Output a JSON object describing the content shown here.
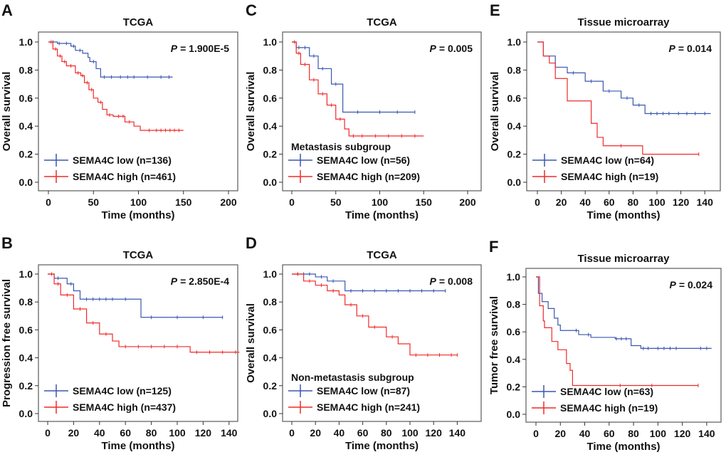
{
  "colors": {
    "low": "#3a57b0",
    "high": "#f02a2a",
    "axis": "#222222"
  },
  "chart_data": [
    {
      "type": "line",
      "letter": "A",
      "title": "TCGA",
      "ylabel": "Overall survival",
      "xlabel": "Time (months)",
      "p_label": "P",
      "p_value": "= 1.900E-5",
      "subgroup": "",
      "xlim": [
        0,
        200
      ],
      "xticks": [
        "0",
        "50",
        "100",
        "150",
        "200"
      ],
      "ylim": [
        0,
        1
      ],
      "yticks": [
        "0.0",
        "0.2",
        "0.4",
        "0.6",
        "0.8",
        "1.0"
      ],
      "legend": [
        "SEMA4C low (n=136)",
        "SEMA4C high (n=461)"
      ],
      "legend_position": "bottom-left",
      "series": [
        {
          "name": "SEMA4C low",
          "steps": [
            [
              0,
              1
            ],
            [
              10,
              0.99
            ],
            [
              25,
              0.97
            ],
            [
              30,
              0.94
            ],
            [
              38,
              0.92
            ],
            [
              44,
              0.89
            ],
            [
              46,
              0.86
            ],
            [
              53,
              0.81
            ],
            [
              58,
              0.75
            ]
          ],
          "end": 138,
          "censor": [
            5,
            12,
            20,
            28,
            35,
            50,
            62,
            70,
            80,
            88,
            95,
            110,
            125,
            134
          ]
        },
        {
          "name": "SEMA4C high",
          "steps": [
            [
              0,
              1
            ],
            [
              5,
              0.95
            ],
            [
              10,
              0.9
            ],
            [
              15,
              0.86
            ],
            [
              20,
              0.83
            ],
            [
              30,
              0.78
            ],
            [
              36,
              0.76
            ],
            [
              40,
              0.71
            ],
            [
              45,
              0.66
            ],
            [
              50,
              0.6
            ],
            [
              55,
              0.57
            ],
            [
              60,
              0.52
            ],
            [
              65,
              0.48
            ],
            [
              72,
              0.47
            ],
            [
              85,
              0.43
            ],
            [
              95,
              0.4
            ],
            [
              102,
              0.37
            ]
          ],
          "end": 150,
          "censor": [
            3,
            8,
            13,
            18,
            25,
            33,
            38,
            43,
            48,
            58,
            68,
            78,
            83,
            90,
            112,
            120,
            125,
            130,
            135,
            140,
            145
          ]
        }
      ]
    },
    {
      "type": "line",
      "letter": "C",
      "title": "TCGA",
      "ylabel": "Overall survival",
      "xlabel": "Time (months)",
      "p_label": "P",
      "p_value": "= 0.005",
      "subgroup": "Metastasis subgroup",
      "xlim": [
        0,
        200
      ],
      "xticks": [
        "0",
        "50",
        "100",
        "150",
        "200"
      ],
      "ylim": [
        0,
        1
      ],
      "yticks": [
        "0.0",
        "0.2",
        "0.4",
        "0.6",
        "0.8",
        "1.0"
      ],
      "legend": [
        "SEMA4C low (n=56)",
        "SEMA4C high (n=209)"
      ],
      "legend_position": "bottom-left",
      "series": [
        {
          "name": "SEMA4C low",
          "steps": [
            [
              0,
              1
            ],
            [
              5,
              0.96
            ],
            [
              20,
              0.9
            ],
            [
              30,
              0.81
            ],
            [
              45,
              0.7
            ],
            [
              58,
              0.5
            ]
          ],
          "end": 140,
          "censor": [
            8,
            15,
            25,
            35,
            50,
            75,
            100,
            120,
            140
          ]
        },
        {
          "name": "SEMA4C high",
          "steps": [
            [
              0,
              1
            ],
            [
              5,
              0.92
            ],
            [
              10,
              0.84
            ],
            [
              20,
              0.73
            ],
            [
              30,
              0.63
            ],
            [
              40,
              0.55
            ],
            [
              50,
              0.45
            ],
            [
              60,
              0.38
            ],
            [
              65,
              0.33
            ]
          ],
          "end": 150,
          "censor": [
            3,
            8,
            15,
            25,
            35,
            45,
            55,
            70,
            80,
            95,
            110,
            125,
            140
          ]
        }
      ]
    },
    {
      "type": "line",
      "letter": "E",
      "title": "Tissue microarray",
      "ylabel": "Overall survival",
      "xlabel": "Time (months)",
      "p_label": "P",
      "p_value": "= 0.014",
      "subgroup": "",
      "xlim": [
        0,
        150
      ],
      "xticks": [
        "0",
        "20",
        "40",
        "60",
        "80",
        "100",
        "120",
        "140"
      ],
      "ylim": [
        0,
        1
      ],
      "yticks": [
        "0.0",
        "0.2",
        "0.4",
        "0.6",
        "0.8",
        "1.0"
      ],
      "legend": [
        "SEMA4C low    (n=64)",
        "SEMA4C high  (n=19)"
      ],
      "legend_position": "bottom-left",
      "series": [
        {
          "name": "SEMA4C low",
          "steps": [
            [
              0,
              1
            ],
            [
              5,
              0.9
            ],
            [
              15,
              0.82
            ],
            [
              25,
              0.78
            ],
            [
              40,
              0.72
            ],
            [
              55,
              0.65
            ],
            [
              70,
              0.6
            ],
            [
              80,
              0.55
            ],
            [
              90,
              0.49
            ]
          ],
          "end": 145,
          "censor": [
            30,
            45,
            60,
            75,
            85,
            95,
            100,
            105,
            110,
            118,
            125,
            132,
            140
          ]
        },
        {
          "name": "SEMA4C high",
          "steps": [
            [
              0,
              1
            ],
            [
              5,
              0.9
            ],
            [
              10,
              0.85
            ],
            [
              15,
              0.74
            ],
            [
              25,
              0.58
            ],
            [
              45,
              0.42
            ],
            [
              50,
              0.32
            ],
            [
              55,
              0.26
            ],
            [
              88,
              0.2
            ]
          ],
          "end": 135,
          "censor": [
            70,
            135
          ]
        }
      ]
    },
    {
      "type": "line",
      "letter": "B",
      "title": "TCGA",
      "ylabel": "Progression free survival",
      "xlabel": "Time (months)",
      "p_label": "P",
      "p_value": "= 2.850E-4",
      "subgroup": "",
      "xlim": [
        0,
        150
      ],
      "xticks": [
        "0",
        "20",
        "40",
        "60",
        "80",
        "100",
        "120",
        "140"
      ],
      "ylim": [
        0,
        1
      ],
      "yticks": [
        "0.0",
        "0.2",
        "0.4",
        "0.6",
        "0.8",
        "1.0"
      ],
      "legend": [
        "SEMA4C low (n=125)",
        "SEMA4C high (n=437)"
      ],
      "legend_position": "bottom-left",
      "series": [
        {
          "name": "SEMA4C low",
          "steps": [
            [
              0,
              1
            ],
            [
              5,
              0.97
            ],
            [
              15,
              0.93
            ],
            [
              20,
              0.88
            ],
            [
              25,
              0.82
            ],
            [
              72,
              0.69
            ]
          ],
          "end": 135,
          "censor": [
            8,
            18,
            30,
            35,
            40,
            45,
            50,
            60,
            80,
            100,
            120,
            135
          ]
        },
        {
          "name": "SEMA4C high",
          "steps": [
            [
              0,
              1
            ],
            [
              5,
              0.93
            ],
            [
              10,
              0.85
            ],
            [
              20,
              0.75
            ],
            [
              30,
              0.65
            ],
            [
              40,
              0.57
            ],
            [
              50,
              0.52
            ],
            [
              55,
              0.48
            ],
            [
              110,
              0.44
            ]
          ],
          "end": 148,
          "censor": [
            3,
            8,
            15,
            25,
            35,
            45,
            60,
            70,
            80,
            90,
            100,
            115,
            125,
            135,
            145
          ]
        }
      ]
    },
    {
      "type": "line",
      "letter": "D",
      "title": "TCGA",
      "ylabel": "Overall survival",
      "xlabel": "Time (months)",
      "p_label": "P",
      "p_value": "= 0.008",
      "subgroup": "Non-metastasis subgroup",
      "xlim": [
        0,
        150
      ],
      "xticks": [
        "0",
        "20",
        "40",
        "60",
        "80",
        "100",
        "120",
        "140"
      ],
      "ylim": [
        0,
        1
      ],
      "yticks": [
        "0.0",
        "0.2",
        "0.4",
        "0.6",
        "0.8",
        "1.0"
      ],
      "legend": [
        "SEMA4C low (n=87)",
        "SEMA4C high (n=241)"
      ],
      "legend_position": "bottom-left",
      "series": [
        {
          "name": "SEMA4C low",
          "steps": [
            [
              0,
              1
            ],
            [
              20,
              0.98
            ],
            [
              30,
              0.95
            ],
            [
              45,
              0.88
            ]
          ],
          "end": 130,
          "censor": [
            5,
            10,
            15,
            25,
            35,
            50,
            60,
            70,
            80,
            90,
            100,
            110,
            120,
            130
          ]
        },
        {
          "name": "SEMA4C high",
          "steps": [
            [
              0,
              1
            ],
            [
              10,
              0.95
            ],
            [
              20,
              0.92
            ],
            [
              30,
              0.88
            ],
            [
              40,
              0.85
            ],
            [
              45,
              0.78
            ],
            [
              55,
              0.7
            ],
            [
              65,
              0.62
            ],
            [
              80,
              0.55
            ],
            [
              90,
              0.5
            ],
            [
              100,
              0.42
            ]
          ],
          "end": 140,
          "censor": [
            5,
            15,
            25,
            35,
            50,
            60,
            70,
            85,
            105,
            115,
            125,
            135,
            140
          ]
        }
      ]
    },
    {
      "type": "line",
      "letter": "F",
      "title": "Tissue microarray",
      "ylabel": "Tumor free survival",
      "xlabel": "Time (months)",
      "p_label": "P",
      "p_value": "= 0.024",
      "subgroup": "",
      "xlim": [
        0,
        150
      ],
      "xticks": [
        "0",
        "20",
        "40",
        "60",
        "80",
        "100",
        "120",
        "140"
      ],
      "ylim": [
        0,
        1
      ],
      "yticks": [
        "0.0",
        "0.2",
        "0.4",
        "0.6",
        "0.8",
        "1.0"
      ],
      "legend": [
        "SEMA4C low    (n=63)",
        "SEMA4C high  (n=19)"
      ],
      "legend_position": "bottom-left",
      "series": [
        {
          "name": "SEMA4C low",
          "steps": [
            [
              0,
              1
            ],
            [
              2,
              0.88
            ],
            [
              5,
              0.82
            ],
            [
              10,
              0.77
            ],
            [
              15,
              0.7
            ],
            [
              18,
              0.65
            ],
            [
              20,
              0.61
            ],
            [
              35,
              0.58
            ],
            [
              45,
              0.56
            ],
            [
              65,
              0.55
            ],
            [
              78,
              0.5
            ],
            [
              86,
              0.48
            ]
          ],
          "end": 144,
          "censor": [
            33,
            43,
            66,
            70,
            74,
            88,
            92,
            100,
            105,
            110,
            115,
            135,
            140
          ]
        },
        {
          "name": "SEMA4C high",
          "steps": [
            [
              0,
              1
            ],
            [
              3,
              0.79
            ],
            [
              6,
              0.68
            ],
            [
              7,
              0.63
            ],
            [
              13,
              0.53
            ],
            [
              18,
              0.47
            ],
            [
              25,
              0.37
            ],
            [
              28,
              0.32
            ],
            [
              30,
              0.21
            ]
          ],
          "end": 133,
          "censor": [
            69,
            95,
            133
          ]
        }
      ]
    }
  ]
}
